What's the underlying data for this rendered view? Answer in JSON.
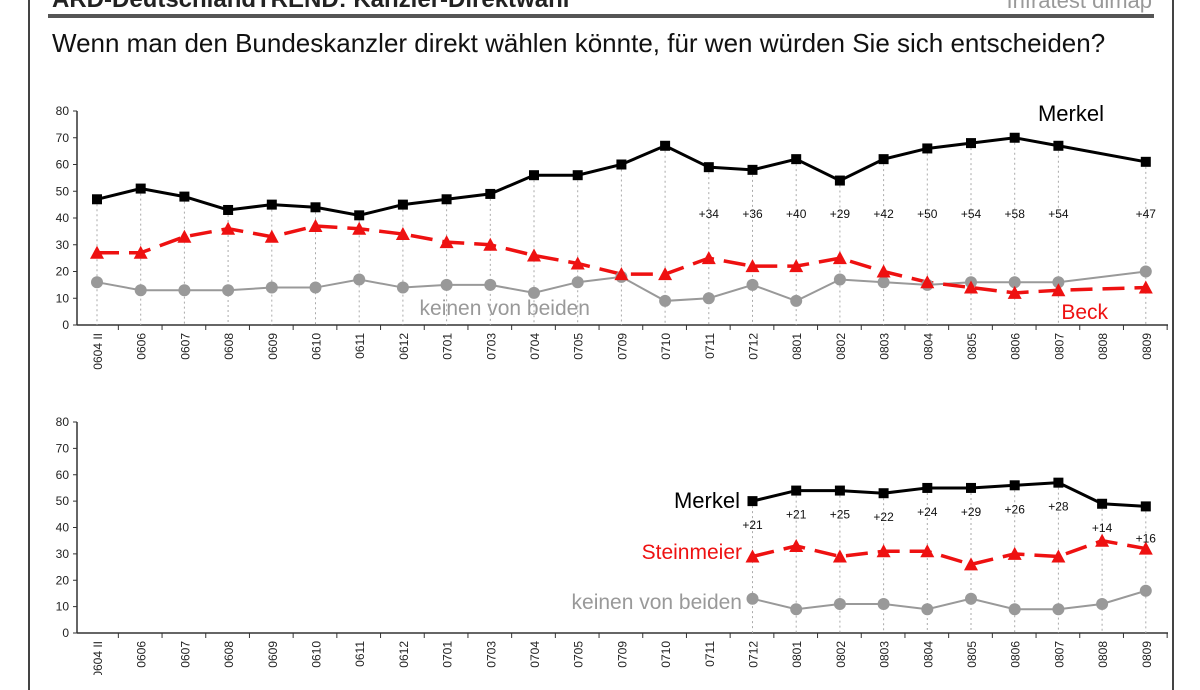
{
  "header": {
    "title": "ARD-DeutschlandTREND: Kanzler-Direktwahl",
    "source": "Infratest dimap"
  },
  "question": "Wenn man den Bundeskanzler direkt wählen könnte, für wen würden Sie sich entscheiden?",
  "colors": {
    "merkel": "#000000",
    "challenger": "#ee1111",
    "neither": "#999999"
  },
  "chart_data": [
    {
      "type": "line",
      "categories": [
        "0604 II",
        "0606",
        "0607",
        "0608",
        "0609",
        "0610",
        "0611",
        "0612",
        "0701",
        "0703",
        "0704",
        "0705",
        "0709",
        "0710",
        "0711",
        "0712",
        "0801",
        "0802",
        "0803",
        "0804",
        "0805",
        "0806",
        "0807",
        "0808",
        "0809"
      ],
      "ylim": [
        0,
        80
      ],
      "yticks": [
        "0",
        "10",
        "20",
        "30",
        "40",
        "50",
        "60",
        "70",
        "80"
      ],
      "series": [
        {
          "name": "Merkel",
          "values": [
            47,
            51,
            48,
            43,
            45,
            44,
            41,
            45,
            47,
            49,
            56,
            56,
            60,
            67,
            59,
            58,
            62,
            54,
            62,
            66,
            68,
            70,
            67,
            null,
            61
          ]
        },
        {
          "name": "Beck",
          "values": [
            27,
            27,
            33,
            36,
            33,
            37,
            36,
            34,
            31,
            30,
            26,
            23,
            19,
            19,
            25,
            22,
            22,
            25,
            20,
            16,
            14,
            12,
            13,
            null,
            14
          ]
        },
        {
          "name": "keinen von beiden",
          "values": [
            16,
            13,
            13,
            13,
            14,
            14,
            17,
            14,
            15,
            15,
            12,
            16,
            18,
            9,
            10,
            15,
            9,
            17,
            16,
            15,
            16,
            16,
            16,
            null,
            20
          ]
        }
      ],
      "lead_labels": [
        null,
        null,
        null,
        null,
        null,
        null,
        null,
        null,
        null,
        null,
        null,
        null,
        null,
        null,
        "+34",
        "+36",
        "+40",
        "+29",
        "+42",
        "+50",
        "+54",
        "+58",
        "+54",
        null,
        "+47"
      ]
    },
    {
      "type": "line",
      "categories": [
        "0604 II",
        "0606",
        "0607",
        "0608",
        "0609",
        "0610",
        "0611",
        "0612",
        "0701",
        "0703",
        "0704",
        "0705",
        "0709",
        "0710",
        "0711",
        "0712",
        "0801",
        "0802",
        "0803",
        "0804",
        "0805",
        "0806",
        "0807",
        "0808",
        "0809"
      ],
      "ylim": [
        0,
        80
      ],
      "yticks": [
        "0",
        "10",
        "20",
        "30",
        "40",
        "50",
        "60",
        "70",
        "80"
      ],
      "series": [
        {
          "name": "Merkel",
          "values": [
            null,
            null,
            null,
            null,
            null,
            null,
            null,
            null,
            null,
            null,
            null,
            null,
            null,
            null,
            null,
            50,
            54,
            54,
            53,
            55,
            55,
            56,
            57,
            49,
            48
          ]
        },
        {
          "name": "Steinmeier",
          "values": [
            null,
            null,
            null,
            null,
            null,
            null,
            null,
            null,
            null,
            null,
            null,
            null,
            null,
            null,
            null,
            29,
            33,
            29,
            31,
            31,
            26,
            30,
            29,
            35,
            32
          ]
        },
        {
          "name": "keinen von beiden",
          "values": [
            null,
            null,
            null,
            null,
            null,
            null,
            null,
            null,
            null,
            null,
            null,
            null,
            null,
            null,
            null,
            13,
            9,
            11,
            11,
            9,
            13,
            9,
            9,
            11,
            16
          ]
        }
      ],
      "lead_labels": [
        null,
        null,
        null,
        null,
        null,
        null,
        null,
        null,
        null,
        null,
        null,
        null,
        null,
        null,
        null,
        "+21",
        "+21",
        "+25",
        "+22",
        "+24",
        "+29",
        "+26",
        "+28",
        "+14",
        "+16"
      ]
    }
  ]
}
